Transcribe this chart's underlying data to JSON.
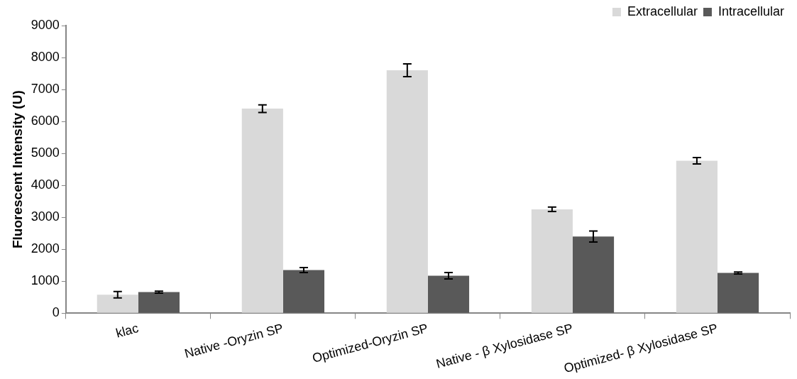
{
  "chart_data": {
    "type": "bar",
    "ylabel": "Fluorescent Intensity (U)",
    "categories": [
      "klac",
      "Native -Oryzin SP",
      "Optimized-Oryzin SP",
      "Native - β Xylosidase SP",
      "Optimized- β Xylosidase SP"
    ],
    "series": [
      {
        "name": "Extracellular",
        "color": "#d9d9d9",
        "values": [
          580,
          6400,
          7600,
          3250,
          4770
        ],
        "errors": [
          100,
          120,
          200,
          70,
          100
        ]
      },
      {
        "name": "Intracellular",
        "color": "#595959",
        "values": [
          660,
          1350,
          1170,
          2400,
          1260
        ],
        "errors": [
          30,
          80,
          100,
          170,
          30
        ]
      }
    ],
    "ylim": [
      0,
      9000
    ],
    "yticks": [
      0,
      1000,
      2000,
      3000,
      4000,
      5000,
      6000,
      7000,
      8000,
      9000
    ],
    "grid": false,
    "legend": "top right"
  }
}
